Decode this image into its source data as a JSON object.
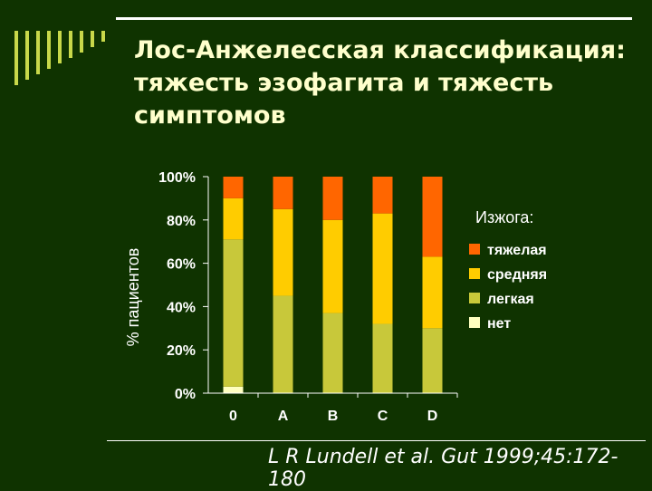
{
  "slide": {
    "title": "Лос-Анжелесская классификация: тяжесть эзофагита и тяжесть симптомов",
    "citation": "L R Lundell et al. Gut 1999;45:172-180"
  },
  "colors": {
    "background": "#0f3300",
    "title": "#ffffcc",
    "text": "#ffffff",
    "stripes": "#c8d84a"
  },
  "chart_data": {
    "type": "bar",
    "stacked": true,
    "categories": [
      "0",
      "A",
      "B",
      "C",
      "D"
    ],
    "ylabel": "% пациентов",
    "ylim": [
      0,
      100
    ],
    "yticks": [
      "0%",
      "20%",
      "40%",
      "60%",
      "80%",
      "100%"
    ],
    "legend_title": "Изжога:",
    "legend_position": "right",
    "series": [
      {
        "name": "нет",
        "color": "#ffffc0",
        "values": [
          3,
          0,
          0,
          0,
          0
        ]
      },
      {
        "name": "легкая",
        "color": "#c8c83a",
        "values": [
          68,
          45,
          37,
          32,
          30
        ]
      },
      {
        "name": "средняя",
        "color": "#ffcc00",
        "values": [
          19,
          40,
          43,
          51,
          33
        ]
      },
      {
        "name": "тяжелая",
        "color": "#ff6600",
        "values": [
          10,
          15,
          20,
          17,
          37
        ]
      }
    ]
  }
}
